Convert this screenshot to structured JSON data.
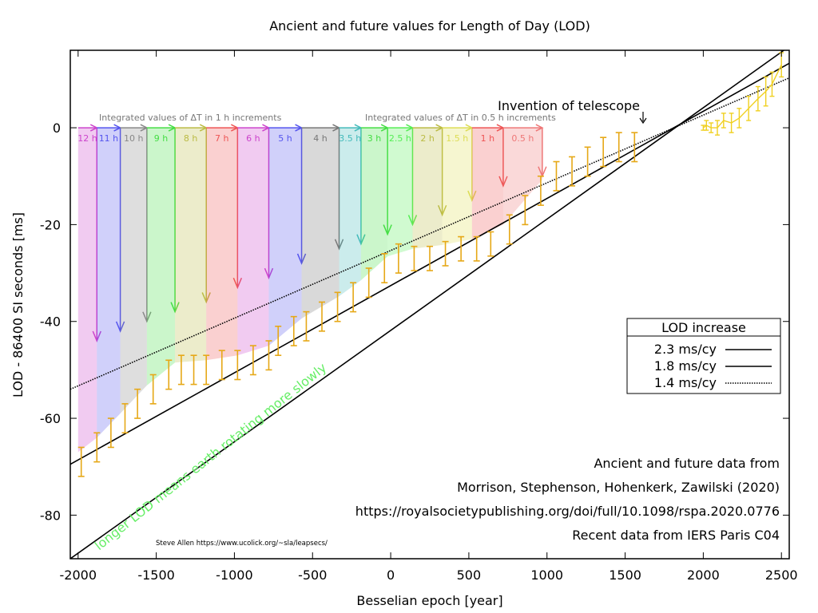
{
  "chart_data": {
    "type": "line",
    "title": "Ancient and future values for Length of Day (LOD)",
    "xlabel": "Besselian epoch [year]",
    "ylabel": "LOD - 86400 SI seconds [ms]",
    "xlim": [
      -2050,
      2550
    ],
    "ylim": [
      -89,
      16
    ],
    "xticks": [
      -2000,
      -1500,
      -1000,
      -500,
      0,
      500,
      1000,
      1500,
      2000,
      2500
    ],
    "xtick_labels": [
      "-2000",
      "-1500",
      "-1000",
      "-500",
      "0",
      "500",
      "1000",
      "1500",
      "2000",
      "2500"
    ],
    "yticks": [
      -80,
      -60,
      -40,
      -20,
      0
    ],
    "ytick_labels": [
      "-80",
      "-60",
      "-40",
      "-20",
      "0"
    ],
    "legend": {
      "title": "LOD increase",
      "position": "right",
      "entries": [
        {
          "label": "2.3 ms/cy",
          "style": "solid"
        },
        {
          "label": "1.8 ms/cy",
          "style": "solid"
        },
        {
          "label": "1.4 ms/cy",
          "style": "dotted"
        }
      ]
    },
    "trend_lines": [
      {
        "name": "2.3 ms/cy",
        "slope_ms_per_cy": 2.3,
        "points": [
          [
            -2050,
            -89
          ],
          [
            2520,
            16.1
          ]
        ]
      },
      {
        "name": "1.8 ms/cy",
        "slope_ms_per_cy": 1.8,
        "points": [
          [
            -2050,
            -69.5
          ],
          [
            2550,
            13.3
          ]
        ]
      },
      {
        "name": "1.4 ms/cy",
        "slope_ms_per_cy": 1.4,
        "points": [
          [
            -2050,
            -54
          ],
          [
            2550,
            10.3
          ]
        ]
      }
    ],
    "reconstruction_series": {
      "color": "#e6a817",
      "x": [
        -1980,
        -1880,
        -1790,
        -1700,
        -1620,
        -1520,
        -1420,
        -1340,
        -1260,
        -1180,
        -1080,
        -980,
        -880,
        -780,
        -720,
        -620,
        -540,
        -440,
        -340,
        -240,
        -140,
        -40,
        50,
        150,
        250,
        350,
        450,
        550,
        640,
        760,
        860,
        960,
        1060,
        1160,
        1260,
        1360,
        1460,
        1560
      ],
      "y": [
        -69,
        -66,
        -63,
        -60,
        -57,
        -54,
        -51,
        -50,
        -50,
        -50,
        -49,
        -49,
        -48,
        -47,
        -44,
        -42,
        -41,
        -39,
        -37,
        -35,
        -32,
        -29,
        -27,
        -27,
        -27,
        -26,
        -25,
        -25,
        -24,
        -21,
        -17,
        -13,
        -10,
        -9,
        -7,
        -5,
        -4,
        -4
      ],
      "err": [
        3,
        3,
        3,
        3,
        3,
        3,
        3,
        3,
        3,
        3,
        3,
        3,
        3,
        3,
        3,
        3,
        3,
        3,
        3,
        3,
        3,
        3,
        3,
        2.5,
        2.5,
        2.5,
        2.5,
        2.5,
        2.5,
        3,
        3,
        3,
        3,
        3,
        3,
        3,
        3,
        3
      ]
    },
    "future_series": {
      "color": "#f0d020",
      "x": [
        2000,
        2020,
        2050,
        2090,
        2130,
        2180,
        2230,
        2290,
        2350,
        2400,
        2440,
        2500
      ],
      "y": [
        0,
        0.5,
        0,
        0,
        1.5,
        1,
        2,
        4,
        6,
        7.5,
        9,
        13
      ],
      "err": [
        0.5,
        1,
        1,
        1.5,
        1.5,
        2,
        2,
        2.5,
        2.5,
        3,
        2.5,
        2.5
      ]
    },
    "bands_1h": [
      {
        "label": "12 h",
        "x0": -2000,
        "x1": -1880,
        "y_end": -44,
        "color": "#cc44cc"
      },
      {
        "label": "11 h",
        "x0": -1880,
        "x1": -1730,
        "y_end": -42,
        "color": "#5555ee"
      },
      {
        "label": "10 h",
        "x0": -1730,
        "x1": -1560,
        "y_end": -40,
        "color": "#888888"
      },
      {
        "label": "9 h",
        "x0": -1560,
        "x1": -1380,
        "y_end": -38,
        "color": "#44dd44"
      },
      {
        "label": "8 h",
        "x0": -1380,
        "x1": -1180,
        "y_end": -36,
        "color": "#bbbb44"
      },
      {
        "label": "7 h",
        "x0": -1180,
        "x1": -980,
        "y_end": -33,
        "color": "#ee5555"
      },
      {
        "label": "6 h",
        "x0": -980,
        "x1": -780,
        "y_end": -31,
        "color": "#cc44cc"
      },
      {
        "label": "5 h",
        "x0": -780,
        "x1": -570,
        "y_end": -28,
        "color": "#5555ee"
      },
      {
        "label": "4 h",
        "x0": -570,
        "x1": -330,
        "y_end": -25,
        "color": "#777777"
      }
    ],
    "bands_half_h": [
      {
        "label": "3.5 h",
        "x0": -330,
        "x1": -190,
        "y_end": -24,
        "color": "#44bbbb"
      },
      {
        "label": "3 h",
        "x0": -190,
        "x1": -20,
        "y_end": -22,
        "color": "#44dd44"
      },
      {
        "label": "2.5 h",
        "x0": -20,
        "x1": 140,
        "y_end": -20,
        "color": "#55ee55"
      },
      {
        "label": "2 h",
        "x0": 140,
        "x1": 330,
        "y_end": -18,
        "color": "#bbbb44"
      },
      {
        "label": "1.5 h",
        "x0": 330,
        "x1": 520,
        "y_end": -15,
        "color": "#dddd55"
      },
      {
        "label": "1 h",
        "x0": 520,
        "x1": 720,
        "y_end": -12,
        "color": "#ee5555"
      },
      {
        "label": "0.5 h",
        "x0": 720,
        "x1": 970,
        "y_end": -10,
        "color": "#ee7777"
      }
    ],
    "band_headers": [
      {
        "text": "Integrated values of ΔT in 1 h increments",
        "x": -1880
      },
      {
        "text": "Integrated values of ΔT in 0.5 h increments",
        "x": -170
      }
    ],
    "annotations": [
      {
        "text": "Invention of telescope",
        "x": 1610,
        "y": 3.8
      },
      {
        "text": "longer LOD means earth rotating more slowly",
        "color": "#66ee66"
      },
      {
        "text": "Ancient and future data from"
      },
      {
        "text": "Morrison, Stephenson, Hohenkerk, Zawilski (2020)"
      },
      {
        "text": "https://royalsocietypublishing.org/doi/full/10.1098/rspa.2020.0776"
      },
      {
        "text": "Recent data from IERS Paris C04"
      },
      {
        "text": "Steve Allen  https://www.ucolick.org/~sla/leapsecs/"
      }
    ]
  }
}
